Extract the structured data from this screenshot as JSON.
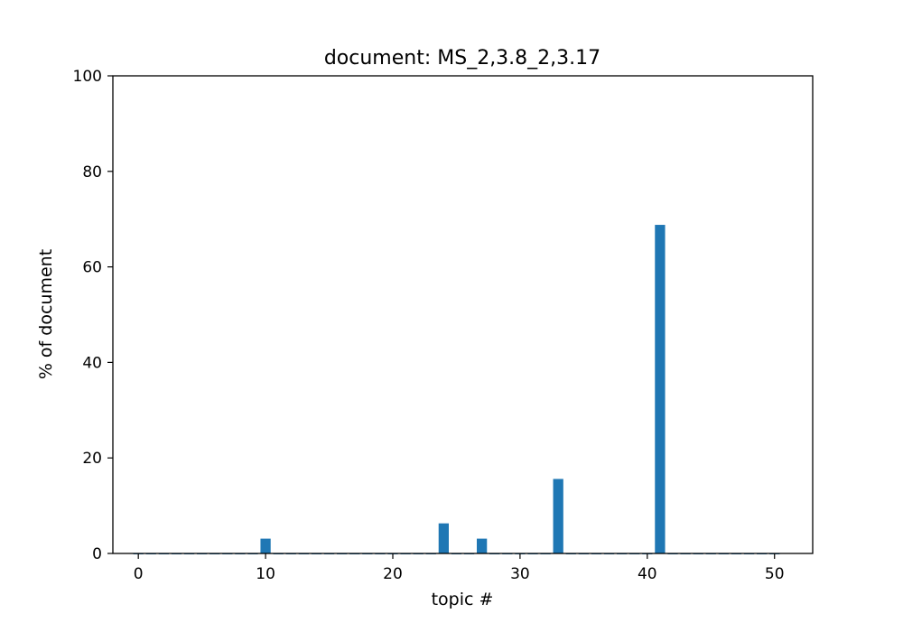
{
  "chart_data": {
    "type": "bar",
    "title": "document: MS_2,3.8_2,3.17",
    "xlabel": "topic #",
    "ylabel": "% of document",
    "xlim": [
      -2,
      53
    ],
    "ylim": [
      0,
      100
    ],
    "xticks": [
      0,
      10,
      20,
      30,
      40,
      50
    ],
    "yticks": [
      0,
      20,
      40,
      60,
      80,
      100
    ],
    "grid": false,
    "bar_color": "#1f77b4",
    "x": [
      0,
      1,
      2,
      3,
      4,
      5,
      6,
      7,
      8,
      9,
      10,
      11,
      12,
      13,
      14,
      15,
      16,
      17,
      18,
      19,
      20,
      21,
      22,
      23,
      24,
      25,
      26,
      27,
      28,
      29,
      30,
      31,
      32,
      33,
      34,
      35,
      36,
      37,
      38,
      39,
      40,
      41,
      42,
      43,
      44,
      45,
      46,
      47,
      48,
      49,
      50
    ],
    "values": [
      0,
      0,
      0,
      0,
      0,
      0,
      0,
      0,
      0,
      0,
      3.1,
      0,
      0,
      0,
      0,
      0,
      0,
      0,
      0,
      0,
      0,
      0,
      0,
      0,
      6.3,
      0,
      0,
      3.1,
      0,
      0,
      0,
      0,
      0,
      15.6,
      0,
      0,
      0,
      0,
      0,
      0,
      0,
      68.8,
      0,
      0,
      0,
      0,
      0,
      0,
      0,
      0,
      0
    ]
  }
}
